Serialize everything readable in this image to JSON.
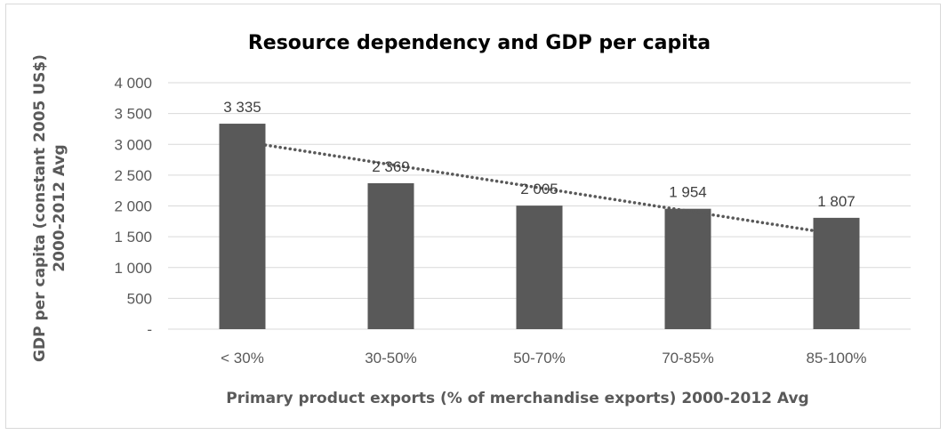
{
  "chart_data": {
    "type": "bar",
    "title": "Resource dependency and GDP per capita",
    "xlabel": "Primary product exports (% of merchandise exports) 2000-2012 Avg",
    "ylabel": [
      "GDP per capita (constant 2005 US$)",
      "2000-2012 Avg"
    ],
    "categories": [
      "< 30%",
      "30-50%",
      "50-70%",
      "70-85%",
      "85-100%"
    ],
    "values": [
      3335,
      2369,
      2005,
      1954,
      1807
    ],
    "data_labels": [
      "3 335",
      "2 369",
      "2 005",
      "1 954",
      "1 807"
    ],
    "ylim": [
      0,
      4000
    ],
    "yticks": [
      0,
      500,
      1000,
      1500,
      2000,
      2500,
      3000,
      3500,
      4000
    ],
    "ytick_labels": [
      "-",
      "500",
      "1 000",
      "1 500",
      "2 000",
      "2 500",
      "3 000",
      "3 500",
      "4 000"
    ],
    "grid": true,
    "legend": "none",
    "trendline": {
      "type": "linear",
      "style": "dotted"
    },
    "colors": {
      "bar": "#595959",
      "trendline": "#595959",
      "grid": "#d9d9d9"
    }
  }
}
